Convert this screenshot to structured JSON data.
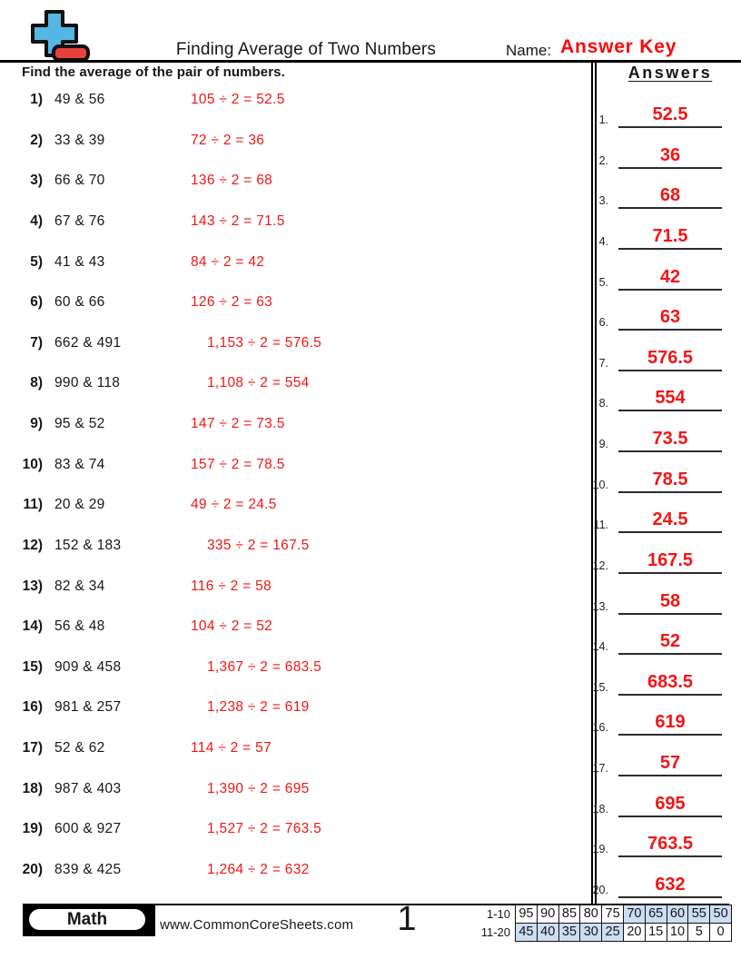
{
  "header": {
    "title": "Finding Average of Two Numbers",
    "name_label": "Name:",
    "name_value": "Answer Key"
  },
  "instruction": "Find the average of the pair of numbers.",
  "problems": [
    {
      "num": "1)",
      "pair": "49 & 56",
      "work": "105 ÷ 2 = 52.5"
    },
    {
      "num": "2)",
      "pair": "33 & 39",
      "work": "72 ÷ 2 = 36"
    },
    {
      "num": "3)",
      "pair": "66 & 70",
      "work": "136 ÷ 2 = 68"
    },
    {
      "num": "4)",
      "pair": "67 & 76",
      "work": "143 ÷ 2 = 71.5"
    },
    {
      "num": "5)",
      "pair": "41 & 43",
      "work": "84 ÷ 2 = 42"
    },
    {
      "num": "6)",
      "pair": "60 & 66",
      "work": "126 ÷ 2 = 63"
    },
    {
      "num": "7)",
      "pair": "662 & 491",
      "work": "1,153 ÷ 2 = 576.5"
    },
    {
      "num": "8)",
      "pair": "990 & 118",
      "work": "1,108 ÷ 2 = 554"
    },
    {
      "num": "9)",
      "pair": "95 & 52",
      "work": "147 ÷ 2 = 73.5"
    },
    {
      "num": "10)",
      "pair": "83 & 74",
      "work": "157 ÷ 2 = 78.5"
    },
    {
      "num": "11)",
      "pair": "20 & 29",
      "work": "49 ÷ 2 = 24.5"
    },
    {
      "num": "12)",
      "pair": "152 & 183",
      "work": "335 ÷ 2 = 167.5"
    },
    {
      "num": "13)",
      "pair": "82 & 34",
      "work": "116 ÷ 2 = 58"
    },
    {
      "num": "14)",
      "pair": "56 & 48",
      "work": "104 ÷ 2 = 52"
    },
    {
      "num": "15)",
      "pair": "909 & 458",
      "work": "1,367 ÷ 2 = 683.5"
    },
    {
      "num": "16)",
      "pair": "981 & 257",
      "work": "1,238 ÷ 2 = 619"
    },
    {
      "num": "17)",
      "pair": "52 & 62",
      "work": "114 ÷ 2 = 57"
    },
    {
      "num": "18)",
      "pair": "987 & 403",
      "work": "1,390 ÷ 2 = 695"
    },
    {
      "num": "19)",
      "pair": "600 & 927",
      "work": "1,527 ÷ 2 = 763.5"
    },
    {
      "num": "20)",
      "pair": "839 & 425",
      "work": "1,264 ÷ 2 = 632"
    }
  ],
  "answers_panel": {
    "heading": "Answers",
    "values": [
      "52.5",
      "36",
      "68",
      "71.5",
      "42",
      "63",
      "576.5",
      "554",
      "73.5",
      "78.5",
      "24.5",
      "167.5",
      "58",
      "52",
      "683.5",
      "619",
      "57",
      "695",
      "763.5",
      "632"
    ]
  },
  "footer": {
    "brand": "Math",
    "website": "www.CommonCoreSheets.com",
    "page_number": "1",
    "score_table": {
      "rows": [
        {
          "label": "1-10",
          "cells": [
            {
              "value": "95",
              "shaded": false
            },
            {
              "value": "90",
              "shaded": false
            },
            {
              "value": "85",
              "shaded": false
            },
            {
              "value": "80",
              "shaded": false
            },
            {
              "value": "75",
              "shaded": false
            },
            {
              "value": "70",
              "shaded": true
            },
            {
              "value": "65",
              "shaded": true
            },
            {
              "value": "60",
              "shaded": true
            },
            {
              "value": "55",
              "shaded": true
            },
            {
              "value": "50",
              "shaded": true
            }
          ]
        },
        {
          "label": "11-20",
          "cells": [
            {
              "value": "45",
              "shaded": true
            },
            {
              "value": "40",
              "shaded": true
            },
            {
              "value": "35",
              "shaded": true
            },
            {
              "value": "30",
              "shaded": true
            },
            {
              "value": "25",
              "shaded": true
            },
            {
              "value": "20",
              "shaded": false
            },
            {
              "value": "15",
              "shaded": false
            },
            {
              "value": "10",
              "shaded": false
            },
            {
              "value": "5",
              "shaded": false
            },
            {
              "value": "0",
              "shaded": false
            }
          ]
        }
      ]
    }
  },
  "colors": {
    "accent_red": "#f21515",
    "answer_key_red": "#fb0606",
    "logo_blue": "#54b6e3",
    "logo_red": "#e8413c",
    "table_shade": "#ccddf4"
  }
}
